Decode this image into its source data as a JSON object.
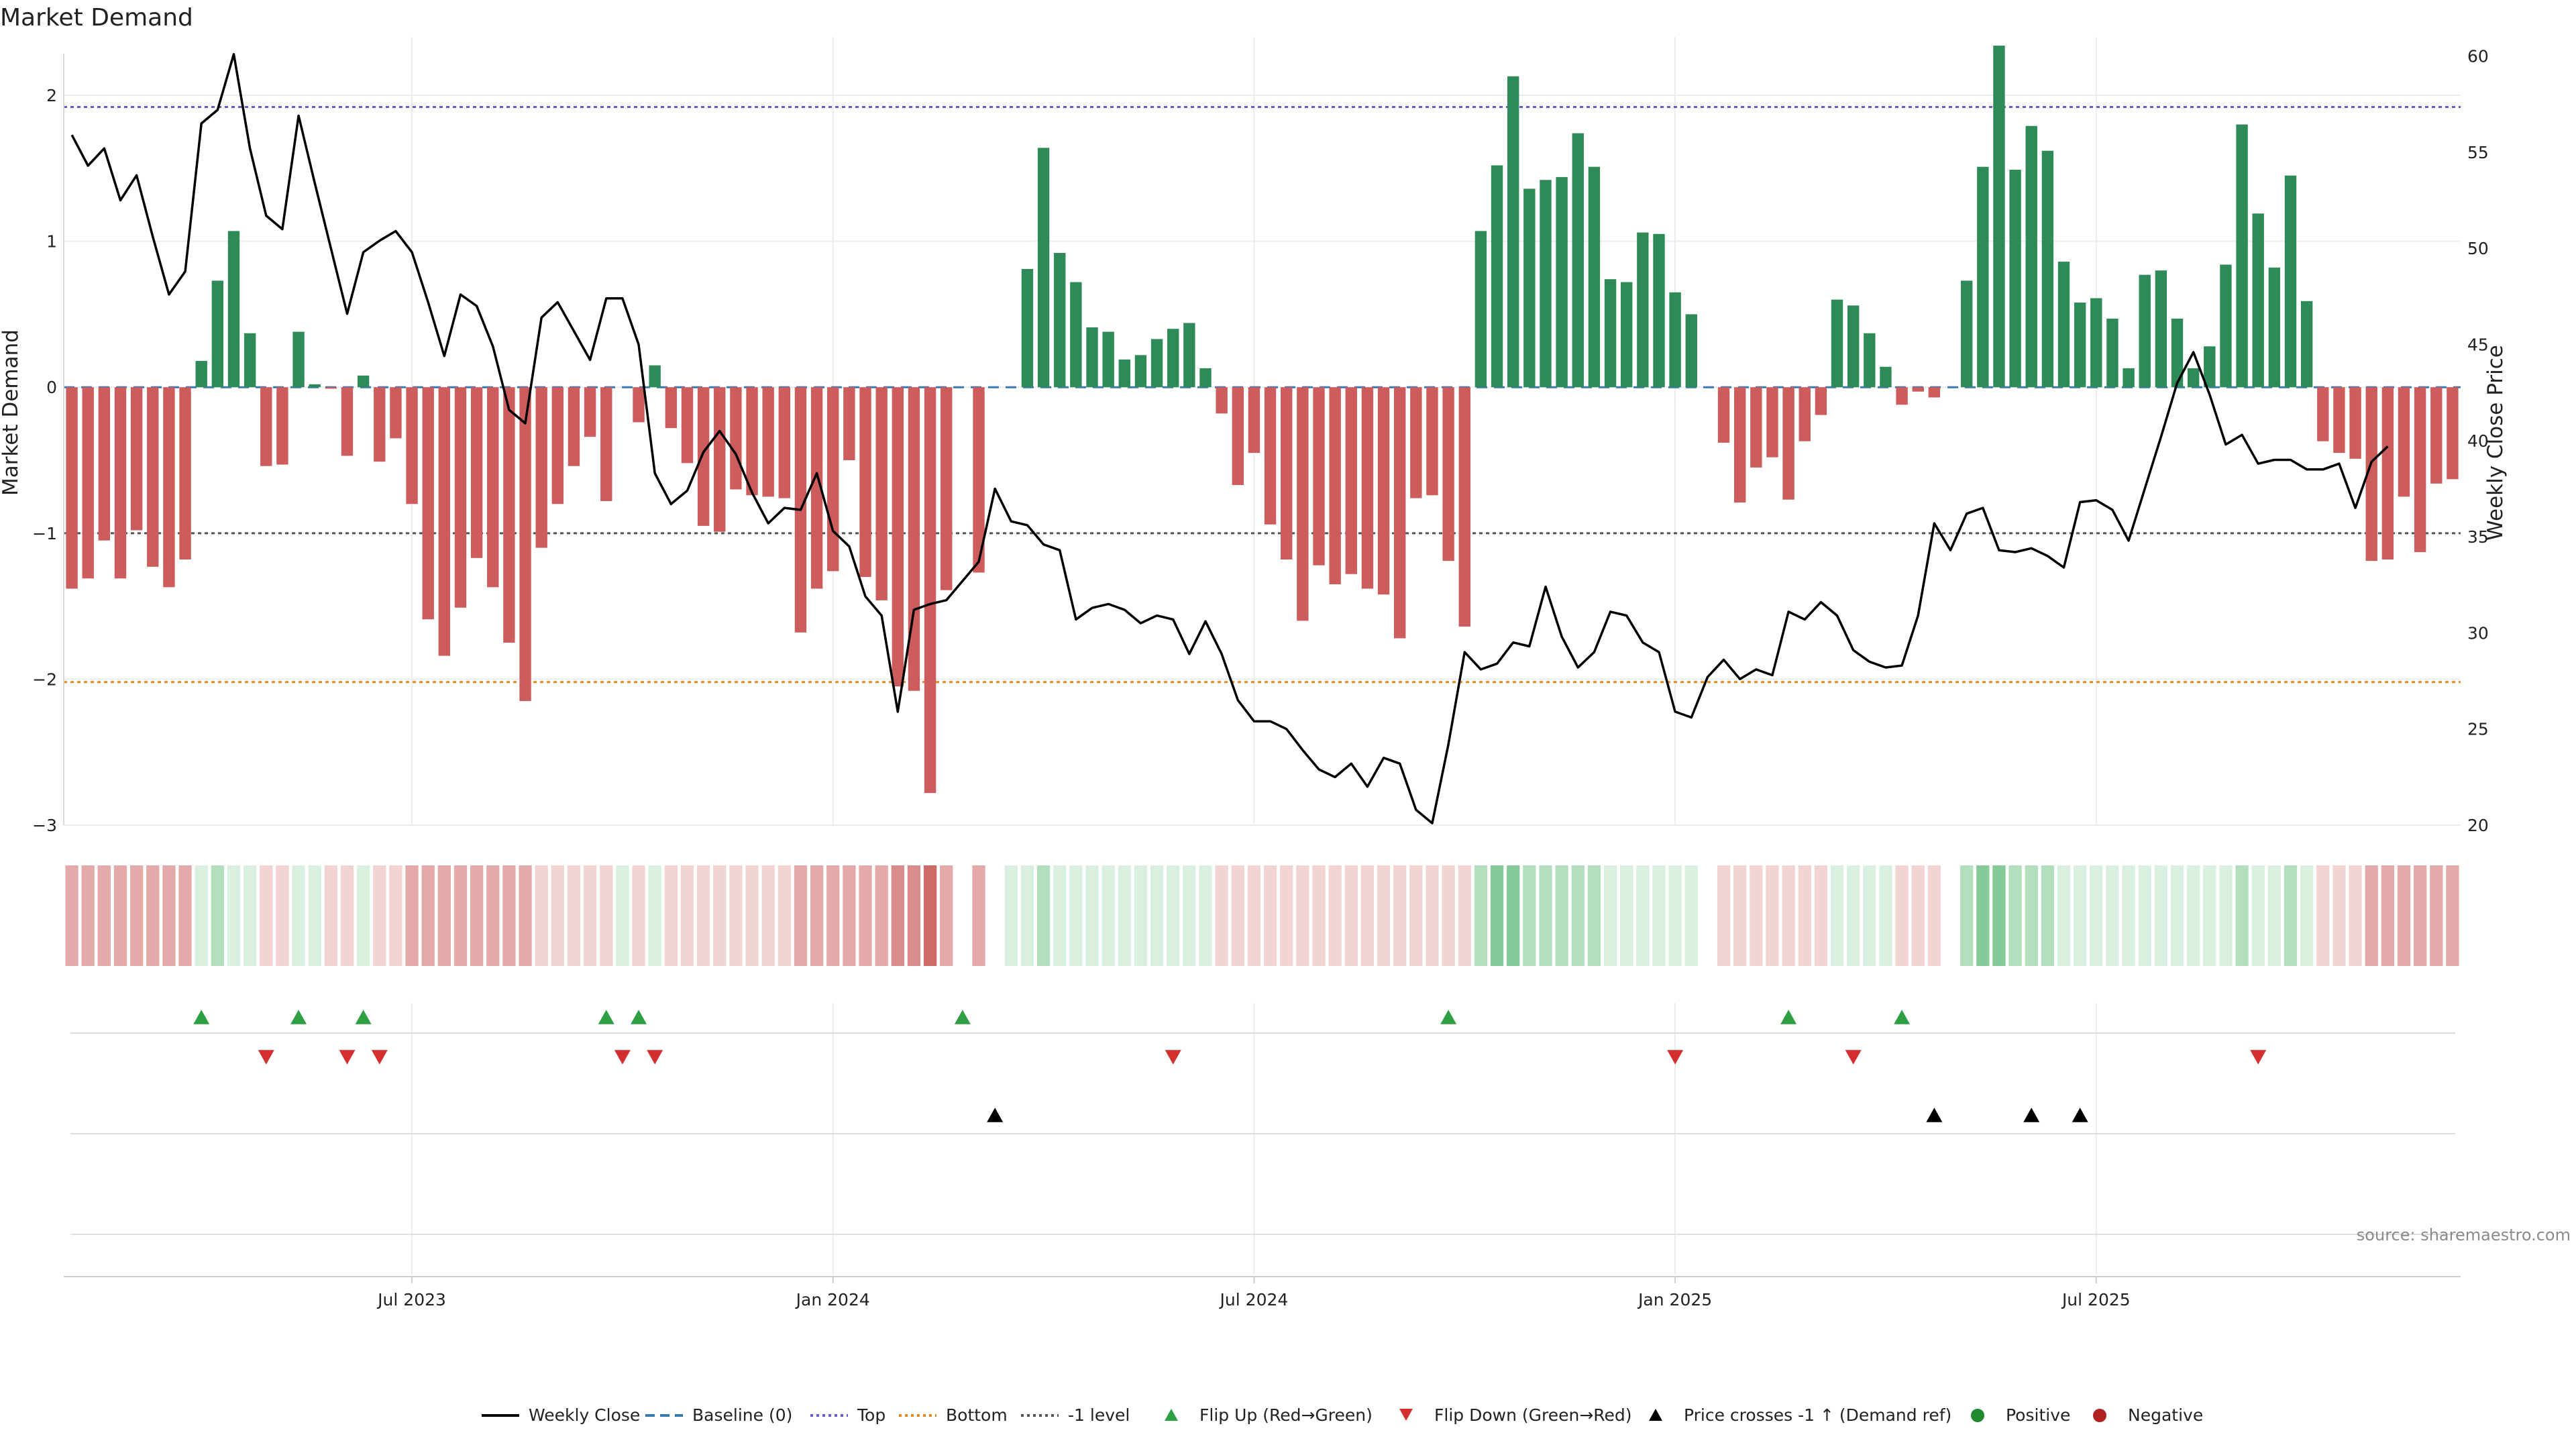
{
  "chart_data": {
    "type": "bar",
    "title": "Market Demand",
    "ylabel": "Market Demand",
    "y2label": "Weekly Close Price",
    "ylim": [
      -3,
      2.4
    ],
    "y2lim": [
      20,
      61
    ],
    "yticks": [
      "2",
      "1",
      "0",
      "−3"
    ],
    "yticks_values": [
      2,
      1,
      0,
      -3
    ],
    "yticks_extra": [
      "−1",
      "−2"
    ],
    "y2ticks": [
      "60",
      "55",
      "50",
      "45",
      "40",
      "35",
      "30",
      "25",
      "20"
    ],
    "y2ticks_values": [
      60,
      55,
      50,
      45,
      40,
      35,
      30,
      25,
      20
    ],
    "x_date_ticks": [
      {
        "label": "Jul 2023",
        "week": 21
      },
      {
        "label": "Jan 2024",
        "week": 47
      },
      {
        "label": "Jul 2024",
        "week": 73
      },
      {
        "label": "Jan 2025",
        "week": 99
      },
      {
        "label": "Jul 2025",
        "week": 125
      }
    ],
    "reference_lines": [
      {
        "name": "Top",
        "value": 1.92,
        "color": "#6a5acd"
      },
      {
        "name": "Bottom",
        "value": -2.02,
        "color": "#e08a1e"
      },
      {
        "name": "-1 level",
        "value": -1.0,
        "color": "#555555"
      }
    ],
    "demand": [
      -1.38,
      -1.31,
      -1.05,
      -1.31,
      -0.98,
      -1.23,
      -1.37,
      -1.18,
      0.18,
      0.73,
      1.07,
      0.37,
      -0.54,
      -0.53,
      0.38,
      0.02,
      -0.01,
      -0.47,
      0.08,
      -0.51,
      -0.35,
      -0.8,
      -1.59,
      -1.84,
      -1.51,
      -1.17,
      -1.37,
      -1.75,
      -2.15,
      -1.1,
      -0.8,
      -0.54,
      -0.34,
      -0.78,
      0.0,
      -0.24,
      0.15,
      -0.28,
      -0.52,
      -0.95,
      -0.99,
      -0.7,
      -0.74,
      -0.75,
      -0.76,
      -1.68,
      -1.38,
      -1.26,
      -0.5,
      -1.3,
      -1.46,
      -2.05,
      -2.08,
      -2.78,
      -1.39,
      0.0,
      -1.27,
      0.0,
      0.0,
      0.81,
      1.64,
      0.92,
      0.72,
      0.41,
      0.38,
      0.19,
      0.22,
      0.33,
      0.4,
      0.44,
      0.13,
      -0.18,
      -0.67,
      -0.45,
      -0.94,
      -1.18,
      -1.6,
      -1.22,
      -1.35,
      -1.28,
      -1.38,
      -1.42,
      -1.72,
      -0.76,
      -0.74,
      -1.19,
      -1.64,
      1.07,
      1.52,
      2.13,
      1.36,
      1.42,
      1.44,
      1.74,
      1.51,
      0.74,
      0.72,
      1.06,
      1.05,
      0.65,
      0.5,
      0.0,
      -0.38,
      -0.79,
      -0.55,
      -0.48,
      -0.77,
      -0.37,
      -0.19,
      0.6,
      0.56,
      0.37,
      0.14,
      -0.12,
      -0.03,
      -0.07,
      0.0,
      0.73,
      1.51,
      2.34,
      1.49,
      1.79,
      1.62,
      0.86,
      0.58,
      0.61,
      0.47,
      0.13,
      0.77,
      0.8,
      0.47,
      0.13,
      0.28,
      0.84,
      1.8,
      1.19,
      0.82,
      1.45,
      0.59,
      -0.37,
      -0.45,
      -0.49,
      -1.19,
      -1.18,
      -0.75,
      -1.13,
      -0.66,
      -0.63
    ],
    "price": [
      55.9,
      54.3,
      55.2,
      52.5,
      53.8,
      50.6,
      47.6,
      48.8,
      56.5,
      57.2,
      60.1,
      55.2,
      51.7,
      51.0,
      56.9,
      53.4,
      50.0,
      46.6,
      49.8,
      50.4,
      50.9,
      49.8,
      47.2,
      44.4,
      47.6,
      47.0,
      44.9,
      41.6,
      40.9,
      46.4,
      47.2,
      45.7,
      44.2,
      47.4,
      47.4,
      45.0,
      38.3,
      36.7,
      37.4,
      39.4,
      40.5,
      39.3,
      37.3,
      35.7,
      36.5,
      36.4,
      38.3,
      35.3,
      34.5,
      31.9,
      30.9,
      25.9,
      31.2,
      31.5,
      31.7,
      32.7,
      33.7,
      37.5,
      35.8,
      35.6,
      34.6,
      34.3,
      30.7,
      31.3,
      31.5,
      31.2,
      30.5,
      30.9,
      30.7,
      28.9,
      30.6,
      28.9,
      26.5,
      25.4,
      25.4,
      25.0,
      23.9,
      22.9,
      22.5,
      23.2,
      22.0,
      23.5,
      23.2,
      20.8,
      20.1,
      24.2,
      29.0,
      28.1,
      28.4,
      29.5,
      29.3,
      32.4,
      29.8,
      28.2,
      29.0,
      31.1,
      30.9,
      29.5,
      29.0,
      25.9,
      25.6,
      27.7,
      28.6,
      27.6,
      28.1,
      27.8,
      31.1,
      30.7,
      31.6,
      30.9,
      29.1,
      28.5,
      28.2,
      28.3,
      30.9,
      35.7,
      34.3,
      36.2,
      36.5,
      34.3,
      34.2,
      34.4,
      34.0,
      33.4,
      36.8,
      36.9,
      36.4,
      34.8,
      37.5,
      40.2,
      43.0,
      44.6,
      42.4,
      39.8,
      40.3,
      38.8,
      39.0,
      39.0,
      38.5,
      38.5,
      38.8,
      36.5,
      38.9,
      39.7
    ],
    "heat_strip": [
      -2,
      -2,
      -2,
      -2,
      -2,
      -2,
      -2,
      -2,
      1,
      2,
      1,
      1,
      -1,
      -1,
      1,
      1,
      -1,
      -1,
      1,
      -1,
      -1,
      -2,
      -2,
      -2,
      -2,
      -2,
      -2,
      -2,
      -2,
      -1,
      -1,
      -1,
      -1,
      -1,
      1,
      -1,
      1,
      -1,
      -1,
      -1,
      -1,
      -1,
      -1,
      -1,
      -1,
      -2,
      -2,
      -2,
      -2,
      -2,
      -2,
      -3,
      -3,
      -4,
      -2,
      0,
      -2,
      0,
      1,
      1,
      2,
      1,
      1,
      1,
      1,
      1,
      1,
      1,
      1,
      1,
      1,
      -1,
      -1,
      -1,
      -1,
      -1,
      -1,
      -1,
      -1,
      -1,
      -1,
      -1,
      -1,
      -1,
      -1,
      -1,
      -1,
      2,
      3,
      3,
      2,
      2,
      2,
      2,
      2,
      1,
      1,
      1,
      1,
      1,
      1,
      0,
      -1,
      -1,
      -1,
      -1,
      -1,
      -1,
      -1,
      1,
      1,
      1,
      1,
      -1,
      -1,
      -1,
      0,
      2,
      3,
      3,
      2,
      2,
      2,
      1,
      1,
      1,
      1,
      1,
      1,
      1,
      1,
      1,
      1,
      1,
      2,
      1,
      1,
      2,
      1,
      -1,
      -1,
      -1,
      -2,
      -2,
      -2,
      -2,
      -2,
      -2
    ],
    "events": {
      "flip_up": [
        8,
        14,
        18,
        33,
        35,
        55,
        85,
        106,
        113
      ],
      "flip_down": [
        12,
        17,
        19,
        34,
        36,
        68,
        99,
        110,
        135
      ],
      "price_cross": [
        57,
        115,
        121,
        124
      ]
    },
    "legend": [
      {
        "label": "Weekly Close",
        "kind": "line"
      },
      {
        "label": "Baseline (0)",
        "kind": "dash"
      },
      {
        "label": "Top",
        "kind": "dotblue"
      },
      {
        "label": "Bottom",
        "kind": "dotorange"
      },
      {
        "label": "-1 level",
        "kind": "dotgray"
      },
      {
        "label": "Flip Up (Red→Green)",
        "kind": "tri-up-green"
      },
      {
        "label": "Flip Down (Green→Red)",
        "kind": "tri-down-red"
      },
      {
        "label": "Price crosses -1 ↑ (Demand ref)",
        "kind": "tri-up-black"
      },
      {
        "label": "Positive",
        "kind": "dot-green"
      },
      {
        "label": "Negative",
        "kind": "dot-red"
      }
    ],
    "source": "source: sharemaestro.com"
  }
}
